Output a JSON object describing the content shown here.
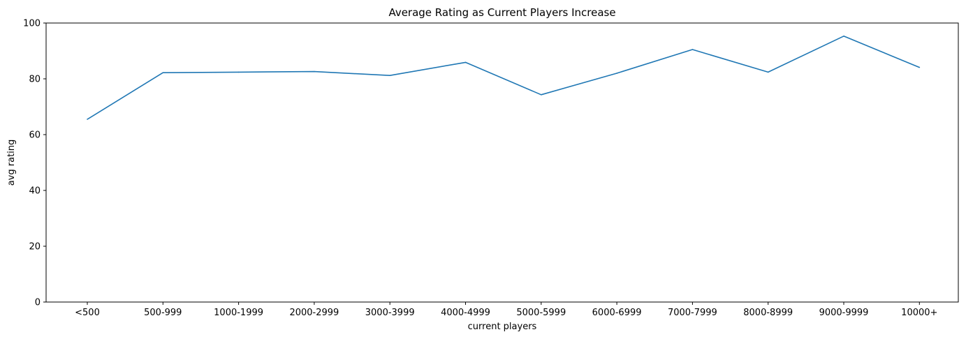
{
  "chart_data": {
    "type": "line",
    "title": "Average Rating as Current Players Increase",
    "xlabel": "current players",
    "ylabel": "avg rating",
    "categories": [
      "<500",
      "500-999",
      "1000-1999",
      "2000-2999",
      "3000-3999",
      "4000-4999",
      "5000-5999",
      "6000-6999",
      "7000-7999",
      "8000-8999",
      "9000-9999",
      "10000+"
    ],
    "series": [
      {
        "values": [
          65.5,
          82.2,
          82.4,
          82.6,
          81.2,
          85.9,
          74.3,
          82.0,
          90.5,
          82.4,
          95.3,
          84.1
        ],
        "color": "#1f77b4"
      }
    ],
    "ylim": [
      0,
      100
    ],
    "yticks": [
      0,
      20,
      40,
      60,
      80,
      100
    ],
    "grid": false,
    "legend": "none"
  }
}
